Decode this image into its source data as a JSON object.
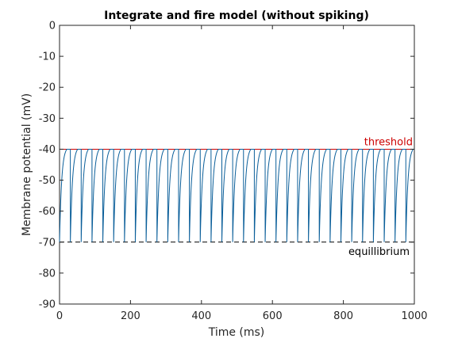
{
  "chart_data": {
    "type": "line",
    "title": "Integrate and fire model (without spiking)",
    "xlabel": "Time (ms)",
    "ylabel": "Membrane potential (mV)",
    "xlim": [
      0,
      1000
    ],
    "ylim": [
      -90,
      0
    ],
    "x_ticks": [
      0,
      200,
      400,
      600,
      800,
      1000
    ],
    "y_ticks": [
      0,
      -10,
      -20,
      -30,
      -40,
      -50,
      -60,
      -70,
      -80,
      -90
    ],
    "grid": false,
    "legend": "none",
    "threshold": {
      "value": -40,
      "label": "threshold",
      "color": "#cc0000"
    },
    "equilibrium": {
      "value": -70,
      "label": "equillibrium",
      "color": "#000000"
    },
    "series": [
      {
        "color": "#0b5f9a",
        "model": {
          "reset_mV": -70,
          "threshold_mV": -40,
          "asymptote_mV": -39,
          "tau_ms": 6,
          "isi_ms": 30.3,
          "t_start_ms": 0,
          "t_end_ms": 1000
        }
      }
    ]
  }
}
